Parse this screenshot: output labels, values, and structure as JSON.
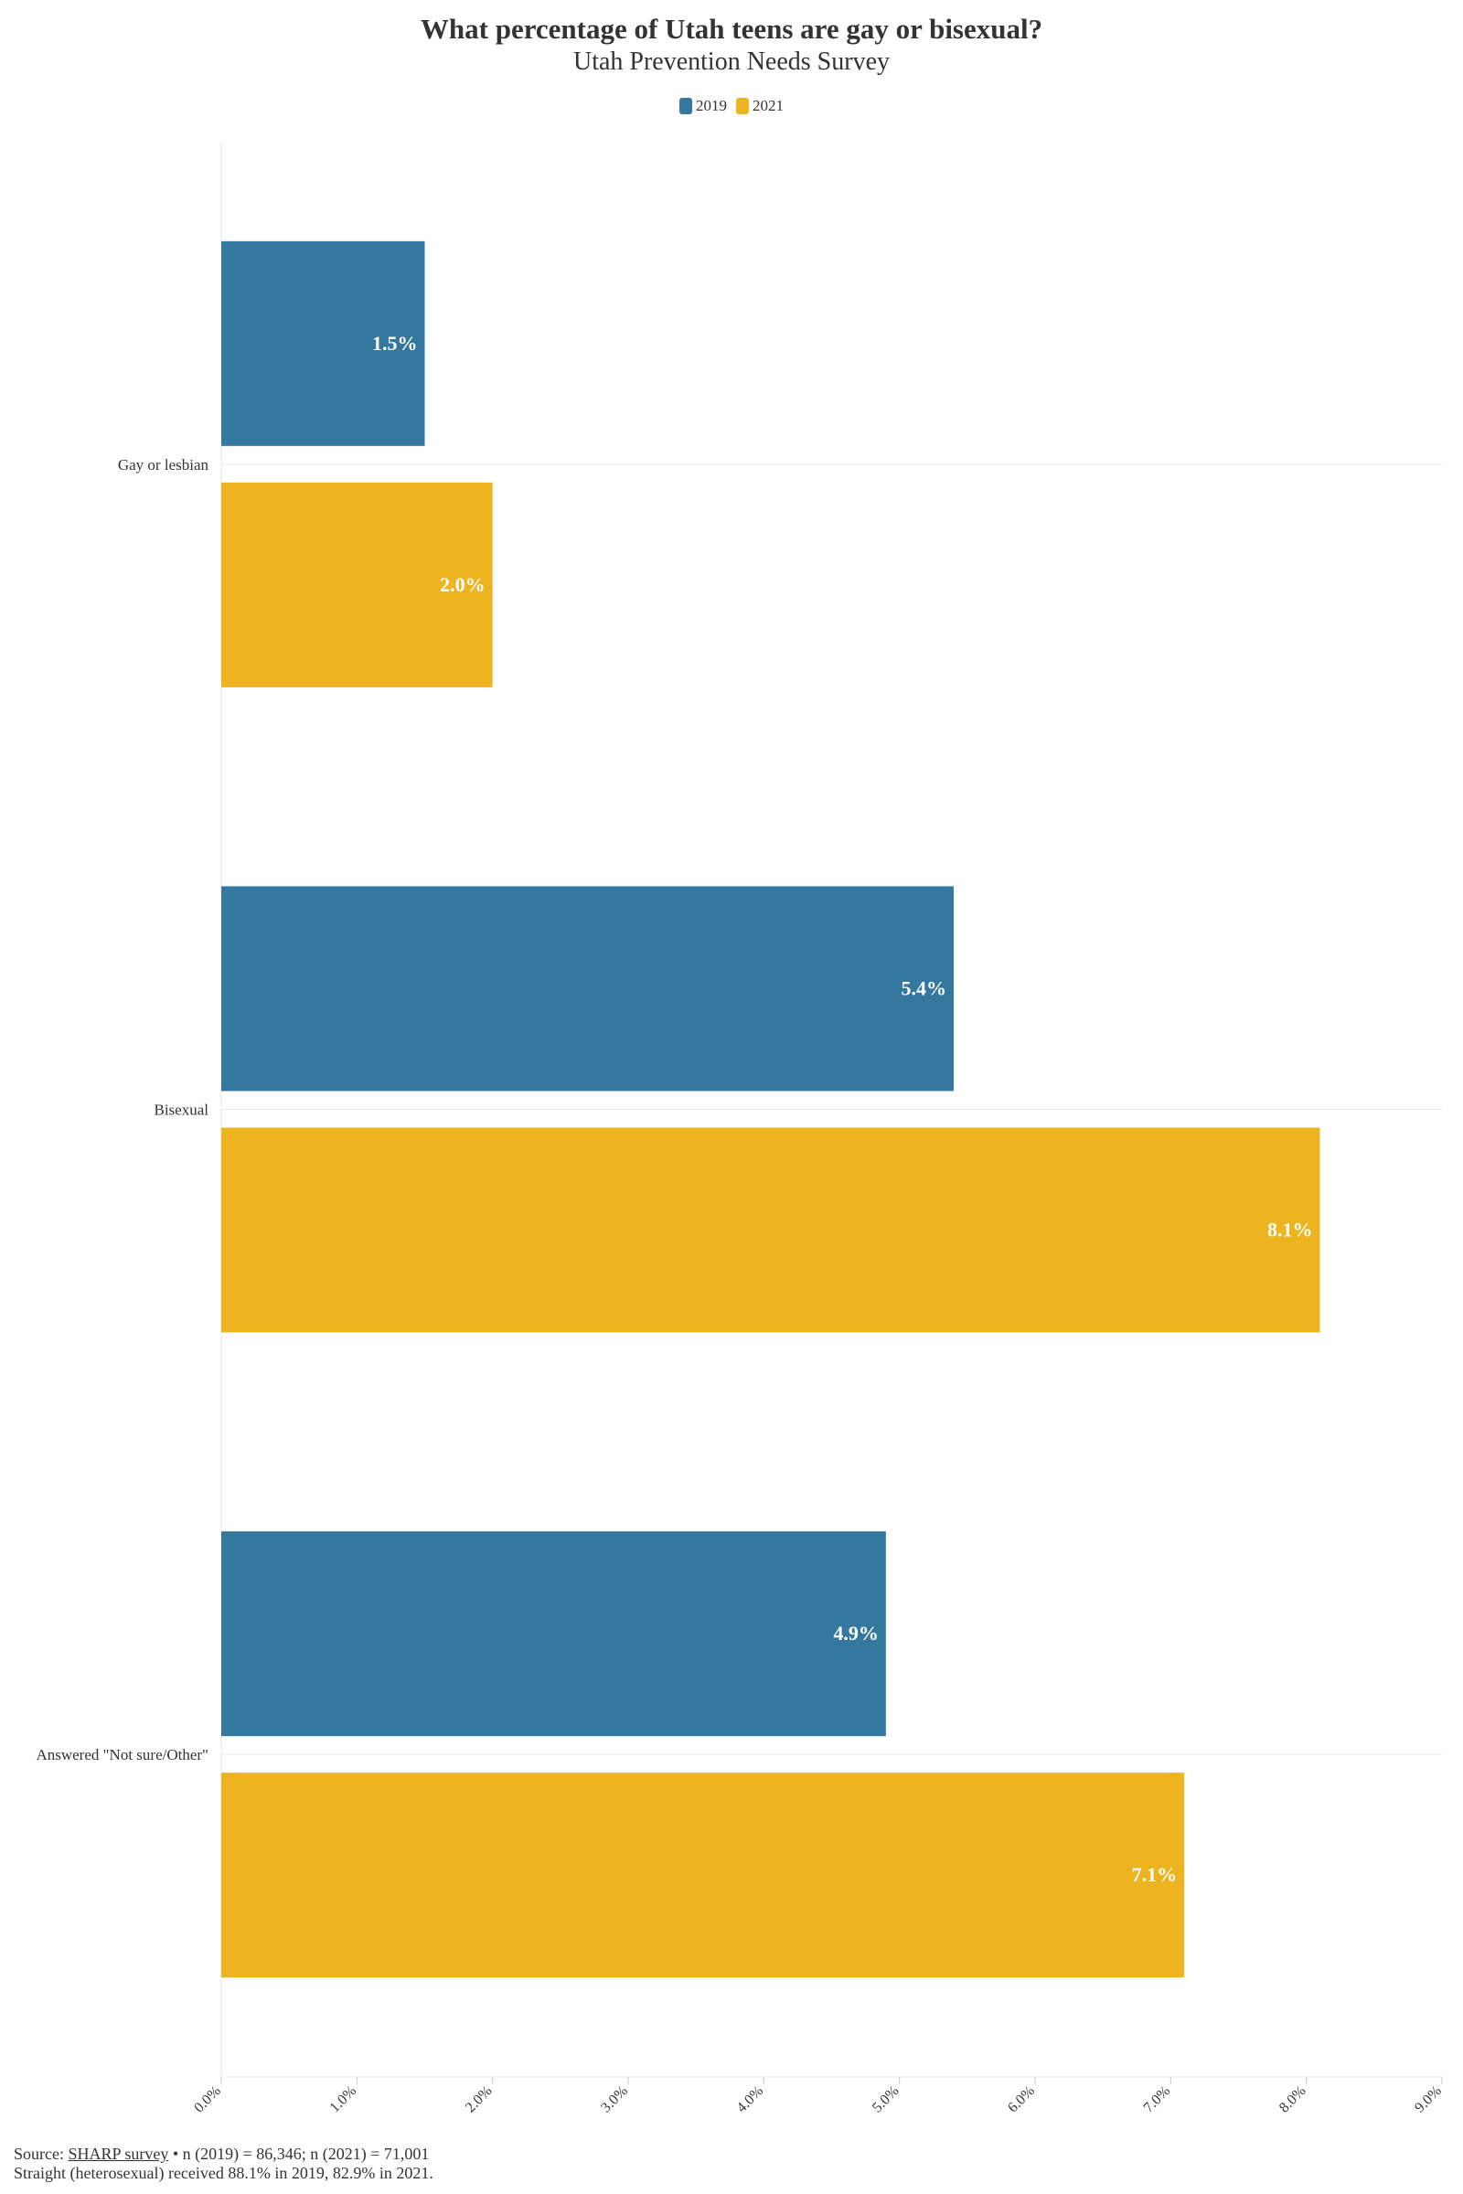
{
  "chart_data": {
    "type": "bar",
    "orientation": "horizontal",
    "title": "What percentage of Utah teens are gay or bisexual?",
    "subtitle": "Utah Prevention Needs Survey",
    "categories": [
      "Gay or lesbian",
      "Bisexual",
      "Answered \"Not sure/Other\""
    ],
    "series": [
      {
        "name": "2019",
        "color": "#34779f",
        "values": [
          1.5,
          5.4,
          4.9
        ],
        "labels": [
          "1.5%",
          "5.4%",
          "4.9%"
        ]
      },
      {
        "name": "2021",
        "color": "#edb420",
        "values": [
          2.0,
          8.1,
          7.1
        ],
        "labels": [
          "2.0%",
          "8.1%",
          "7.1%"
        ]
      }
    ],
    "xlim": [
      0,
      9
    ],
    "x_ticks": [
      "0.0%",
      "1.0%",
      "2.0%",
      "3.0%",
      "4.0%",
      "5.0%",
      "6.0%",
      "7.0%",
      "8.0%",
      "9.0%"
    ],
    "grid": false,
    "legend_position": "top-center"
  },
  "footer": {
    "source_prefix": "Source: ",
    "source_link": "SHARP survey",
    "source_suffix": " • n (2019) = 86,346; n (2021) = 71,001",
    "note": "Straight (heterosexual) received 88.1% in 2019, 82.9% in 2021."
  }
}
